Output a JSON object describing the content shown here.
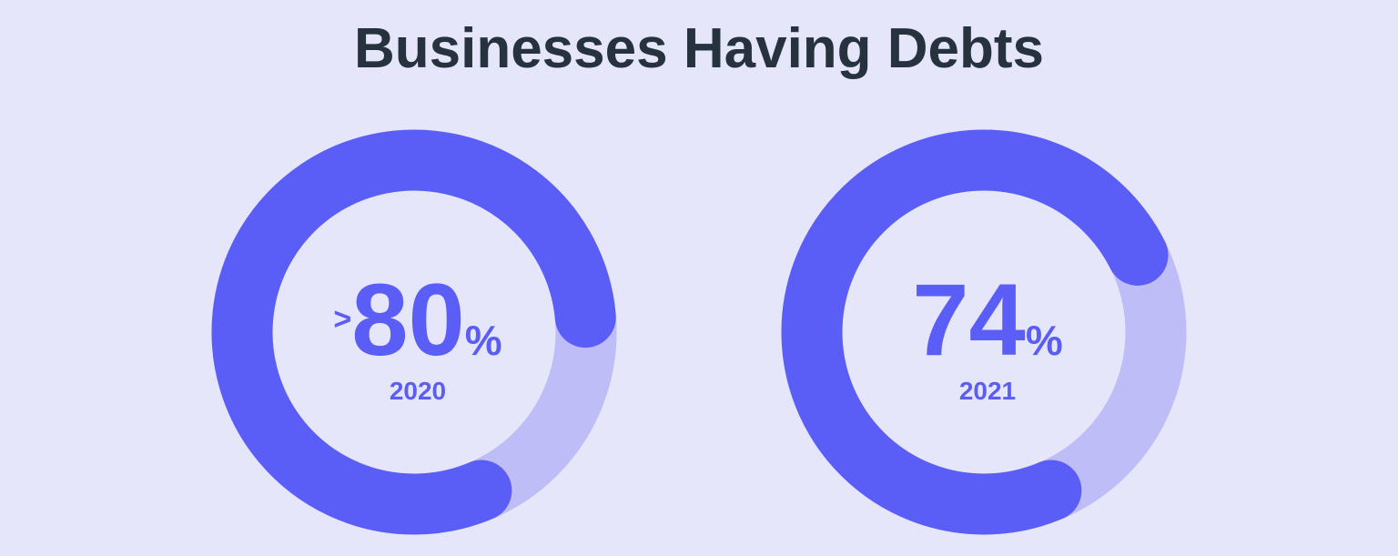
{
  "title": "Businesses Having Debts",
  "chart_data": [
    {
      "type": "donut",
      "categories": [
        "2020"
      ],
      "values": [
        80
      ],
      "value_labels": [
        ">80%"
      ],
      "color": "#5b5ef6",
      "track_color": "#bebdf8"
    },
    {
      "type": "donut",
      "categories": [
        "2021"
      ],
      "values": [
        74
      ],
      "value_labels": [
        "74%"
      ],
      "color": "#5b5ef6",
      "track_color": "#bebdf8"
    }
  ]
}
